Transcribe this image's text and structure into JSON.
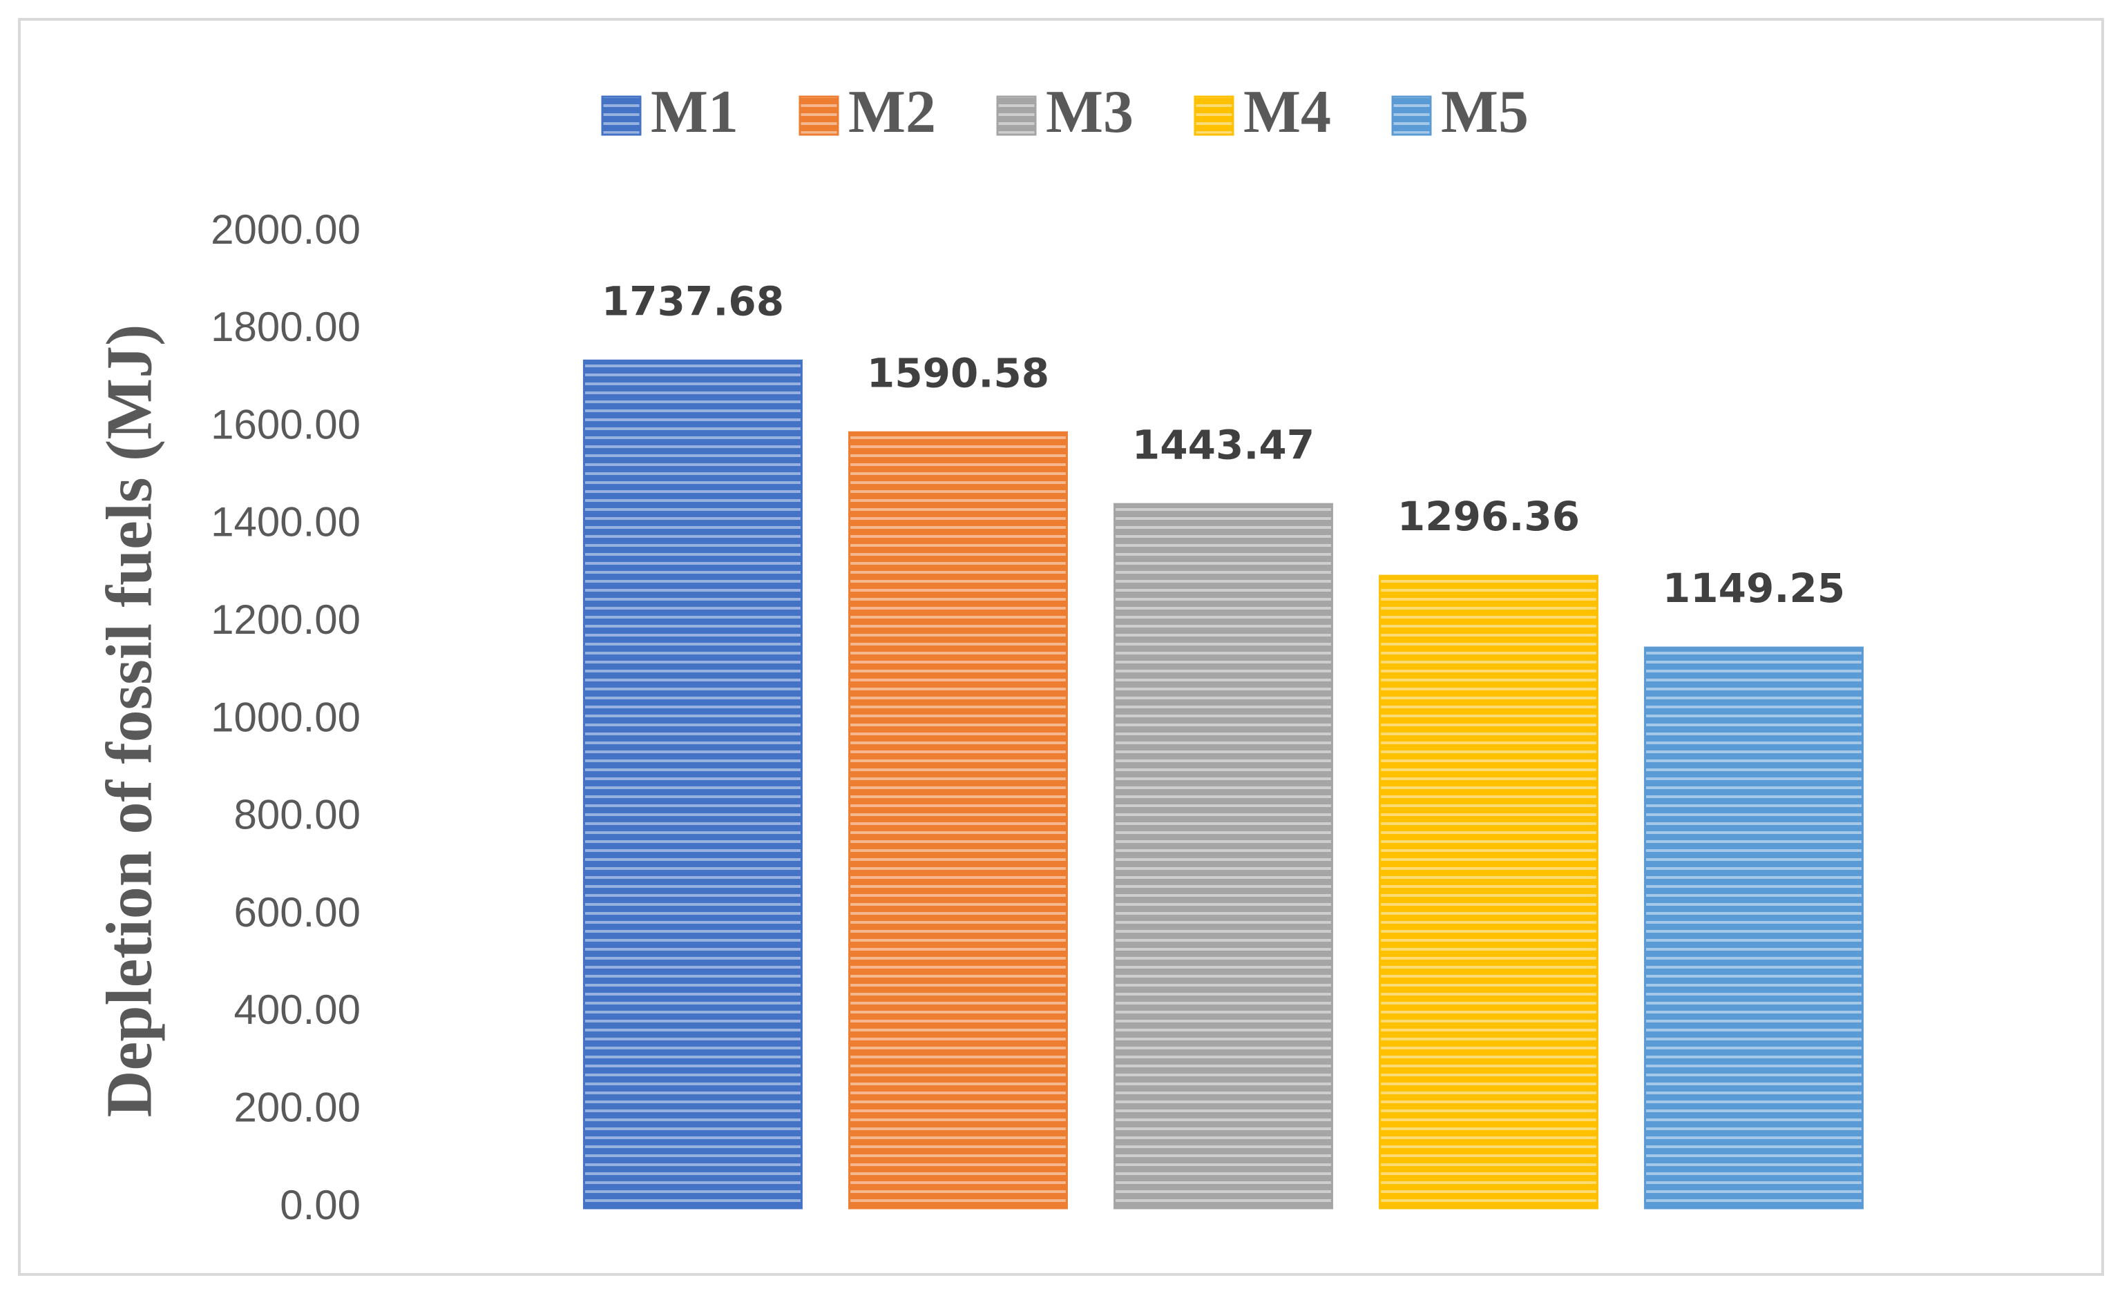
{
  "chart_data": {
    "type": "bar",
    "y_label": "Depletion of fossil fuels (MJ)",
    "categories": [
      null
    ],
    "series": [
      {
        "name": "M1",
        "color": "#4472c4",
        "values": [
          1737.68
        ]
      },
      {
        "name": "M2",
        "color": "#ed7d31",
        "values": [
          1590.58
        ]
      },
      {
        "name": "M3",
        "color": "#a5a5a5",
        "values": [
          1443.47
        ]
      },
      {
        "name": "M4",
        "color": "#ffc000",
        "values": [
          1296.36
        ]
      },
      {
        "name": "M5",
        "color": "#5b9bd5",
        "values": [
          1149.25
        ]
      }
    ],
    "ylim": [
      0,
      2000
    ],
    "yticks": [
      {
        "value": 0,
        "label": "0.00"
      },
      {
        "value": 200,
        "label": "200.00"
      },
      {
        "value": 400,
        "label": "400.00"
      },
      {
        "value": 600,
        "label": "600.00"
      },
      {
        "value": 800,
        "label": "800.00"
      },
      {
        "value": 1000,
        "label": "1000.00"
      },
      {
        "value": 1200,
        "label": "1200.00"
      },
      {
        "value": 1400,
        "label": "1400.00"
      },
      {
        "value": 1600,
        "label": "1600.00"
      },
      {
        "value": 1800,
        "label": "1800.00"
      },
      {
        "value": 2000,
        "label": "2000.00"
      }
    ],
    "grid": false,
    "legend": "top"
  }
}
